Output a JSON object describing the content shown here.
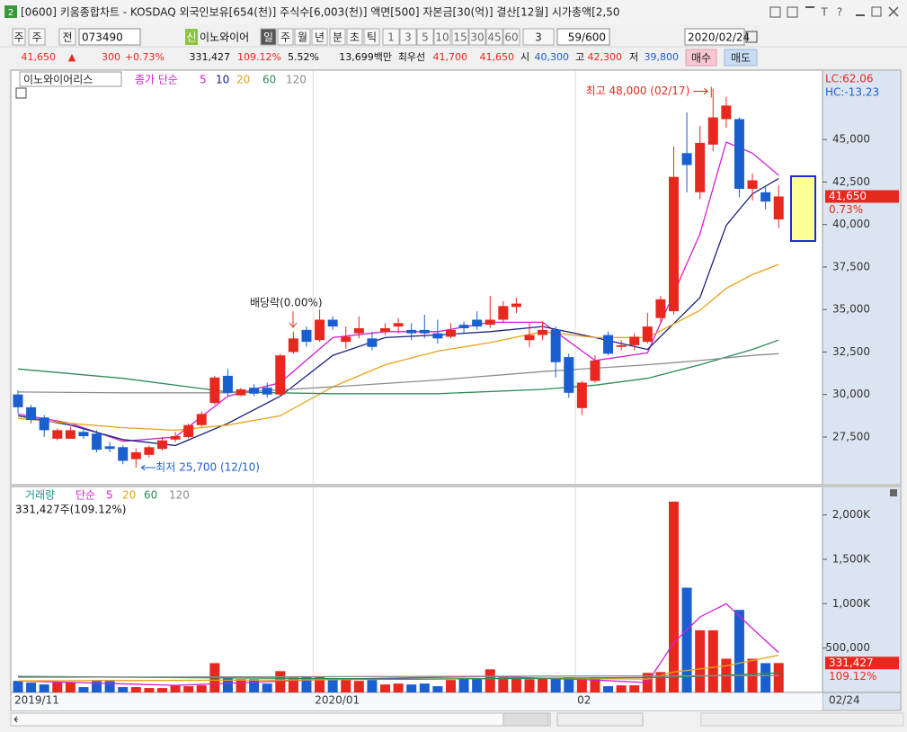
{
  "window": {
    "badge": "2",
    "title": "[0600] 키움종합차트 - KOSDAQ 외국인보유[654(천)] 주식수[6,003(천)] 액면[500] 자본금[30(억)] 결산[12월] 시가총액[2,50",
    "icons": [
      "T",
      "?"
    ]
  },
  "toolbar": {
    "period_unit": "주",
    "mode": "전",
    "code": "073490",
    "new_badge": "신",
    "name": "이노와이어",
    "periods": [
      "일",
      "주",
      "월",
      "년",
      "분",
      "초",
      "틱"
    ],
    "intervals": [
      "1",
      "3",
      "5",
      "10",
      "15",
      "30",
      "45",
      "60"
    ],
    "repeat": "3",
    "count": "59/600",
    "date": "2020/02/24"
  },
  "quote": {
    "price": "41,650",
    "arrow": "▲",
    "change": "300",
    "change_rate": "+0.73%",
    "volume": "331,427",
    "volume_ratio": "109.12%",
    "turnover": "5.52%",
    "trade_value": "13,699백만",
    "best_label": "최우선",
    "ask": "41,700",
    "bid": "41,650",
    "open_label": "시",
    "open": "40,300",
    "high_label": "고",
    "high": "42,300",
    "low_label": "저",
    "low": "39,800",
    "buy": "매수",
    "sell": "매도"
  },
  "chart_data": [
    {
      "type": "candlestick",
      "title": "이노와이어리스",
      "ma_label": "종가 단순",
      "categories": [
        "2019/11",
        null,
        null,
        null,
        null,
        null,
        null,
        null,
        null,
        null,
        null,
        null,
        null,
        null,
        null,
        null,
        null,
        null,
        null,
        null,
        null,
        null,
        null,
        "2020/01",
        null,
        null,
        null,
        null,
        null,
        null,
        null,
        null,
        null,
        null,
        null,
        null,
        null,
        null,
        null,
        null,
        null,
        null,
        null,
        "02",
        null,
        null,
        null,
        null,
        null,
        null,
        null,
        null,
        null,
        null,
        null,
        null,
        null,
        null,
        null
      ],
      "x_end_label": "02/24",
      "up_color": "#e8281e",
      "down_color": "#1a5fd0",
      "open": [
        30000,
        29250,
        28650,
        27400,
        27400,
        27800,
        27700,
        26950,
        26900,
        26200,
        26450,
        26800,
        27350,
        27500,
        28200,
        29500,
        31100,
        29950,
        30400,
        30400,
        30000,
        32500,
        33800,
        33200,
        34400,
        33100,
        33600,
        33300,
        33700,
        34000,
        33800,
        33800,
        33600,
        33400,
        34100,
        34400,
        34100,
        34400,
        35150,
        33200,
        33500,
        33800,
        32200,
        29200,
        30800,
        33500,
        32800,
        32900,
        33100,
        34500,
        34900,
        44200,
        41900,
        44700,
        46200,
        46200,
        42100,
        41900,
        40300
      ],
      "high": [
        30250,
        29400,
        28800,
        28000,
        28100,
        28000,
        27900,
        27200,
        27000,
        26800,
        27000,
        27500,
        27800,
        28300,
        29000,
        31100,
        31500,
        30400,
        30600,
        30700,
        32400,
        33700,
        34000,
        35000,
        34600,
        34000,
        34600,
        33700,
        34200,
        34500,
        34200,
        34700,
        34400,
        34200,
        34300,
        34900,
        35800,
        35500,
        35700,
        34200,
        34300,
        34000,
        32400,
        30800,
        32300,
        33700,
        33200,
        33600,
        34800,
        35800,
        44600,
        46600,
        45800,
        48000,
        47500,
        46300,
        43000,
        42200,
        42300
      ],
      "low": [
        28900,
        28300,
        27500,
        27300,
        27400,
        27400,
        26600,
        26600,
        25900,
        25700,
        26300,
        26700,
        27200,
        27400,
        28100,
        29400,
        29900,
        29900,
        29900,
        29800,
        29900,
        32400,
        32800,
        33100,
        33800,
        32700,
        33300,
        32600,
        33500,
        33600,
        33200,
        33300,
        33000,
        33300,
        33600,
        33800,
        33900,
        34200,
        34800,
        32800,
        33200,
        31000,
        29800,
        28800,
        30700,
        32300,
        32600,
        32600,
        33000,
        34200,
        34700,
        41900,
        41500,
        44300,
        45700,
        41600,
        41400,
        40900,
        39800
      ],
      "close": [
        29250,
        28500,
        27900,
        27900,
        27900,
        27550,
        26750,
        26800,
        26100,
        26600,
        26900,
        27300,
        27550,
        28200,
        28850,
        31000,
        30100,
        30300,
        30050,
        30000,
        32300,
        33300,
        33100,
        34400,
        34000,
        33400,
        33900,
        32800,
        33900,
        34200,
        33600,
        33600,
        33300,
        33800,
        33900,
        34000,
        34400,
        35200,
        35350,
        33500,
        33800,
        31900,
        30100,
        30700,
        32000,
        32400,
        32900,
        33400,
        34000,
        35600,
        42800,
        43500,
        44800,
        46300,
        47000,
        42100,
        42600,
        41350,
        41650
      ],
      "series": [
        {
          "name": "5",
          "color": "#d21fd2",
          "x": [
            0,
            4,
            8,
            12,
            16,
            20,
            24,
            28,
            32,
            36,
            40,
            44,
            48,
            52,
            54,
            56,
            58
          ],
          "values": [
            28850,
            28300,
            27250,
            27500,
            29900,
            30700,
            33350,
            33700,
            33700,
            34250,
            34250,
            32000,
            32450,
            39450,
            44850,
            44200,
            42900
          ]
        },
        {
          "name": "10",
          "color": "#1a237e",
          "x": [
            0,
            4,
            8,
            12,
            16,
            20,
            24,
            28,
            32,
            36,
            40,
            44,
            48,
            52,
            54,
            56,
            58
          ],
          "values": [
            28750,
            28200,
            27350,
            27000,
            28300,
            29900,
            32300,
            33350,
            33500,
            33700,
            34000,
            33350,
            32650,
            35700,
            39950,
            41800,
            42700
          ]
        },
        {
          "name": "20",
          "color": "#e8a317",
          "x": [
            0,
            4,
            8,
            12,
            16,
            20,
            24,
            28,
            32,
            36,
            40,
            44,
            48,
            52,
            54,
            56,
            58
          ],
          "values": [
            28600,
            28300,
            28050,
            27900,
            28200,
            28750,
            30450,
            31750,
            32550,
            33050,
            33700,
            33350,
            33350,
            34950,
            36250,
            37050,
            37650
          ]
        },
        {
          "name": "60",
          "color": "#2e8b57",
          "x": [
            0,
            8,
            16,
            24,
            32,
            40,
            44,
            48,
            52,
            56,
            58
          ],
          "values": [
            31500,
            30950,
            30150,
            30050,
            30050,
            30300,
            30550,
            30950,
            31750,
            32650,
            33200
          ]
        },
        {
          "name": "120",
          "color": "#8c8c8c",
          "x": [
            0,
            8,
            16,
            24,
            32,
            40,
            48,
            52,
            56,
            58
          ],
          "values": [
            30150,
            30100,
            30100,
            30450,
            30850,
            31350,
            31750,
            32000,
            32300,
            32400
          ]
        }
      ],
      "ylim": [
        24800,
        48870
      ],
      "yticks": [
        {
          "value": 27500,
          "label": "27,500"
        },
        {
          "value": 30000,
          "label": "30,000"
        },
        {
          "value": 32500,
          "label": "32,500"
        },
        {
          "value": 35000,
          "label": "35,000"
        },
        {
          "value": 37500,
          "label": "37,500"
        },
        {
          "value": 40000,
          "label": "40,000"
        },
        {
          "value": 42500,
          "label": "42,500"
        },
        {
          "value": 45000,
          "label": "45,000"
        }
      ],
      "annotations": [
        "최고 48,000 (02/17)",
        "최저 25,700 (12/10)",
        "배당락(0.00%)"
      ],
      "indicators": [
        "LC:62.06",
        "HC:-13.23"
      ],
      "last_label": "41,650",
      "last_change_label": "0.73%"
    },
    {
      "type": "bar",
      "title": "거래량",
      "ma_label": "단순",
      "summary": "331,427주(109.12%)",
      "values": [
        130000,
        110000,
        90000,
        120000,
        110000,
        60000,
        140000,
        140000,
        60000,
        60000,
        50000,
        50000,
        80000,
        70000,
        80000,
        330000,
        160000,
        150000,
        150000,
        100000,
        240000,
        170000,
        180000,
        180000,
        150000,
        150000,
        130000,
        140000,
        90000,
        100000,
        90000,
        100000,
        70000,
        140000,
        160000,
        160000,
        260000,
        170000,
        160000,
        150000,
        160000,
        160000,
        170000,
        160000,
        170000,
        70000,
        80000,
        80000,
        220000,
        230000,
        2150000,
        1180000,
        700000,
        700000,
        380000,
        930000,
        380000,
        330000,
        331427
      ],
      "series": [
        {
          "name": "5",
          "color": "#d21fd2",
          "x": [
            0,
            12,
            24,
            36,
            44,
            48,
            50,
            52,
            54,
            56,
            58
          ],
          "values": [
            130000,
            80000,
            150000,
            180000,
            140000,
            110000,
            560000,
            850000,
            1000000,
            720000,
            450000
          ]
        },
        {
          "name": "20",
          "color": "#e8a317",
          "x": [
            0,
            20,
            40,
            48,
            50,
            54,
            58
          ],
          "values": [
            130000,
            140000,
            160000,
            150000,
            230000,
            300000,
            420000
          ]
        },
        {
          "name": "60",
          "color": "#2e8b57",
          "x": [
            0,
            30,
            50,
            58
          ],
          "values": [
            180000,
            150000,
            170000,
            220000
          ]
        },
        {
          "name": "120",
          "color": "#8c8c8c",
          "x": [
            0,
            58
          ],
          "values": [
            170000,
            190000
          ]
        }
      ],
      "ylim": [
        0,
        2280000
      ],
      "yticks": [
        {
          "value": 500000,
          "label": "500,000"
        },
        {
          "value": 1000000,
          "label": "1,000K"
        },
        {
          "value": 1500000,
          "label": "1,500K"
        },
        {
          "value": 2000000,
          "label": "2,000K"
        }
      ],
      "last_label": "331,427",
      "last_ratio_label": "109.12%"
    }
  ]
}
